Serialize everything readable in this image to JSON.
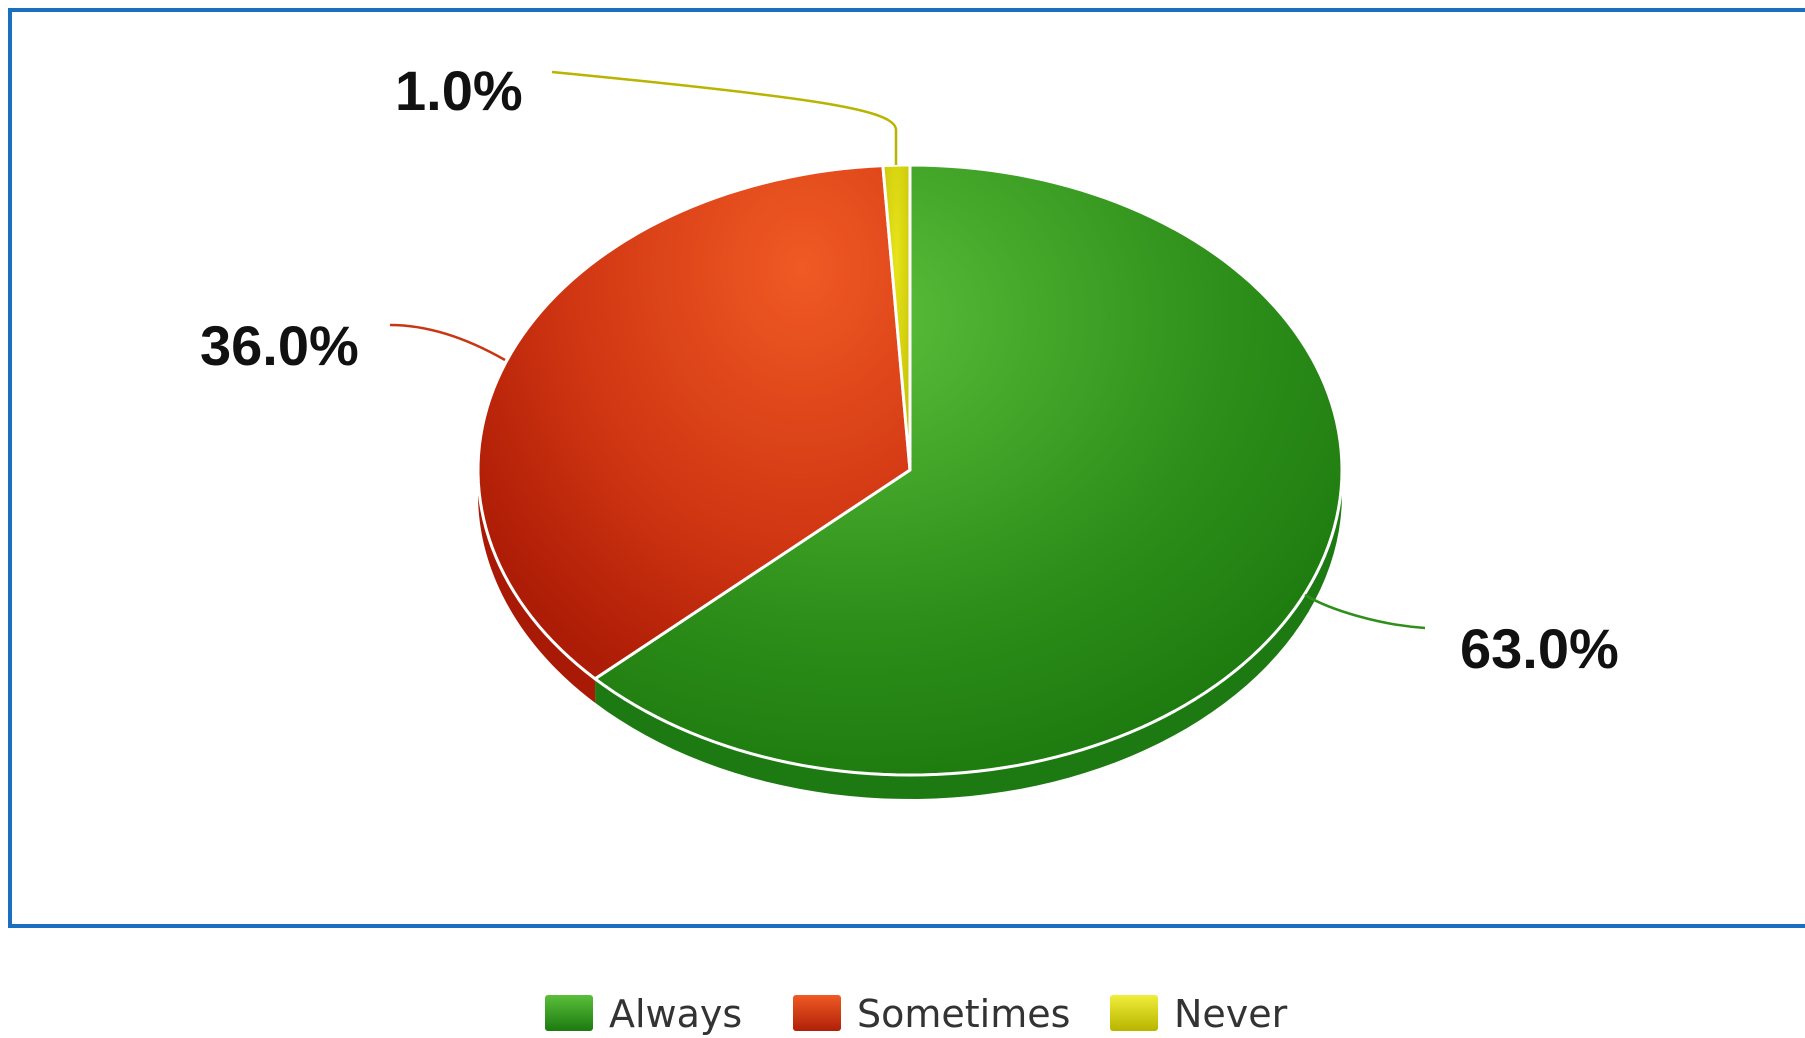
{
  "chart_data": {
    "type": "pie",
    "title": "",
    "legend_position": "bottom",
    "slices": [
      {
        "name": "Always",
        "value": 63.0,
        "label": "63.0%",
        "color": "#2e9a1e"
      },
      {
        "name": "Sometimes",
        "value": 36.0,
        "label": "36.0%",
        "color": "#d63a14"
      },
      {
        "name": "Never",
        "value": 1.0,
        "label": "1.0%",
        "color": "#d4d00a"
      }
    ],
    "legend": [
      "Always",
      "Sometimes",
      "Never"
    ]
  },
  "colors": {
    "frame_border": "#1a6fc0",
    "always": "#2e9a1e",
    "sometimes": "#d63a14",
    "never": "#d4d00a"
  }
}
